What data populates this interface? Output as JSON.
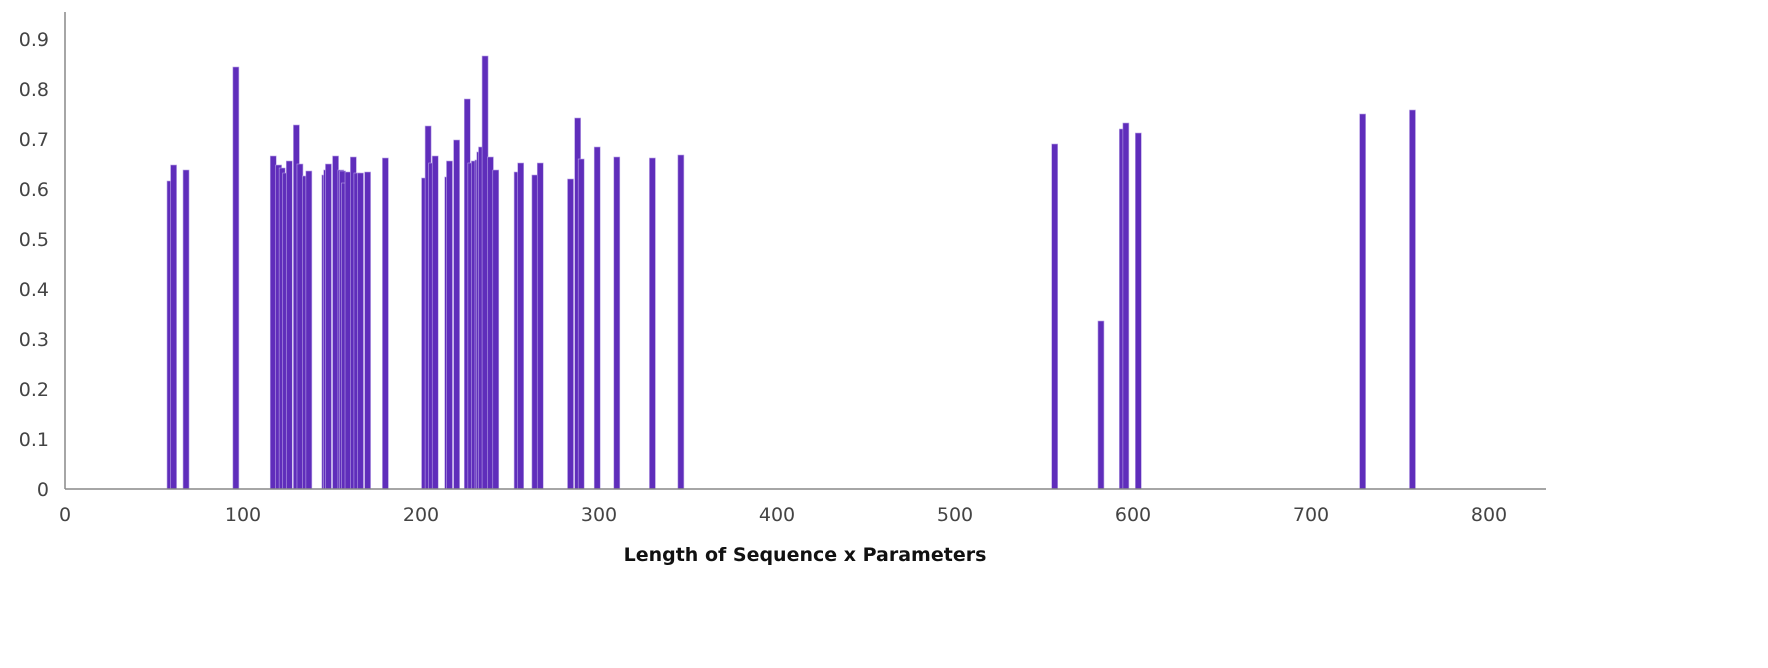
{
  "chart_data": {
    "type": "bar",
    "title": "",
    "xlabel": "Length of Sequence x Parameters",
    "ylabel": "",
    "xlim": [
      0,
      830
    ],
    "ylim": [
      0,
      0.95
    ],
    "xticks": [
      "0",
      "100",
      "200",
      "300",
      "400",
      "500",
      "600",
      "700",
      "800"
    ],
    "yticks": [
      "0",
      "0.1",
      "0.2",
      "0.3",
      "0.4",
      "0.5",
      "0.6",
      "0.7",
      "0.8",
      "0.9"
    ],
    "grid": false,
    "bar_color": "#5f2dbb",
    "x": [
      59,
      61,
      68,
      96,
      117,
      120,
      122,
      124,
      126,
      130,
      132,
      135,
      137,
      146,
      147,
      148,
      152,
      155,
      156,
      157,
      159,
      162,
      164,
      166,
      170,
      180,
      202,
      204,
      206,
      208,
      215,
      216,
      220,
      226,
      228,
      230,
      232,
      233,
      234,
      236,
      239,
      242,
      254,
      256,
      264,
      267,
      284,
      288,
      290,
      299,
      310,
      330,
      346,
      556,
      582,
      594,
      596,
      603,
      729,
      757
    ],
    "values": [
      0.616,
      0.648,
      0.638,
      0.844,
      0.666,
      0.648,
      0.642,
      0.632,
      0.656,
      0.728,
      0.65,
      0.626,
      0.636,
      0.628,
      0.638,
      0.65,
      0.666,
      0.638,
      0.636,
      0.612,
      0.634,
      0.664,
      0.632,
      0.632,
      0.634,
      0.662,
      0.622,
      0.726,
      0.652,
      0.666,
      0.624,
      0.656,
      0.698,
      0.78,
      0.652,
      0.656,
      0.658,
      0.674,
      0.684,
      0.866,
      0.664,
      0.638,
      0.634,
      0.652,
      0.628,
      0.652,
      0.62,
      0.742,
      0.66,
      0.684,
      0.664,
      0.662,
      0.668,
      0.69,
      0.336,
      0.72,
      0.732,
      0.712,
      0.75,
      0.758
    ]
  }
}
